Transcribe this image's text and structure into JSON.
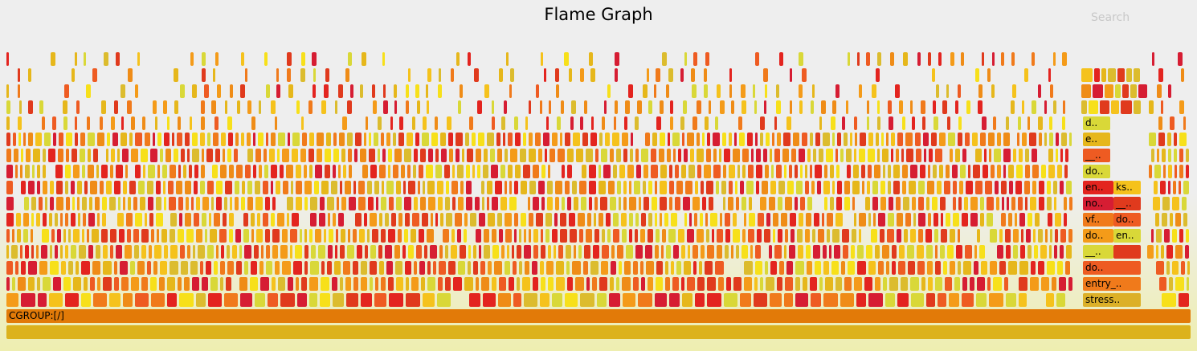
{
  "title": "Flame Graph",
  "search_label": "Search",
  "root_label": "",
  "cgroup_label": "CGROUP:[/]",
  "column_labels": {
    "left": [
      "stress..",
      "entry_..",
      "do..",
      "__..",
      "do..",
      "vf..",
      "no..",
      "en..",
      "do..",
      "__..",
      "e..",
      "d.."
    ],
    "right": [
      "",
      "en..",
      "do..",
      "__..",
      "ks.."
    ]
  },
  "palette": [
    "#e03a1d",
    "#f07a1b",
    "#e6b71b",
    "#d9d838",
    "#f5c21c",
    "#ee5b22",
    "#e3241f",
    "#f49b19",
    "#d61d33",
    "#f7e01a",
    "#dcbc2e",
    "#ef8c17"
  ],
  "colors": {
    "root": "#dcb21c",
    "cgroup": "#e27a08",
    "label_bg": "#dcb028"
  }
}
